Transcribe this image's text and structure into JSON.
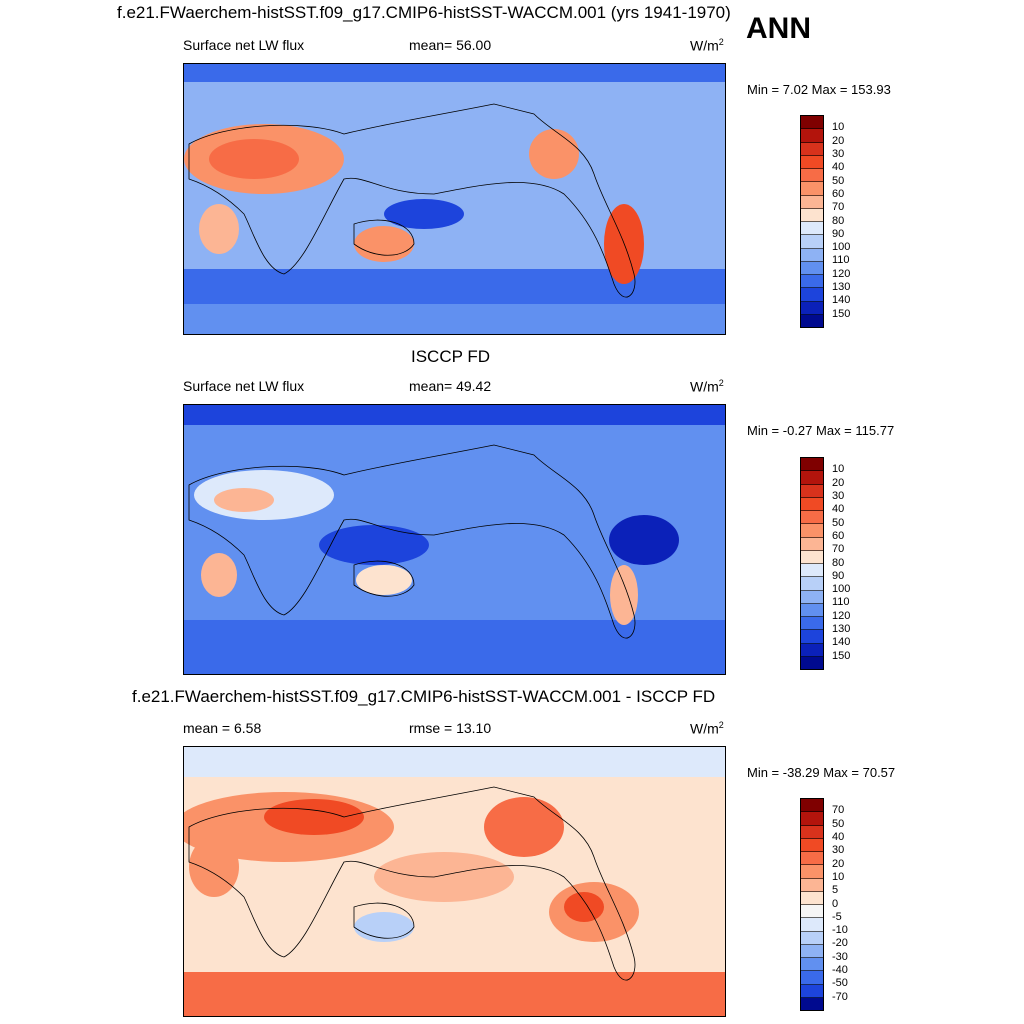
{
  "season": "ANN",
  "panels": [
    {
      "title": "f.e21.FWaerchem-histSST.f09_g17.CMIP6-histSST-WACCM.001 (yrs 1941-1970)",
      "left_label": "Surface net LW flux",
      "center_label": "mean=  56.00",
      "units": "W/m",
      "units_sup": "2",
      "minmax": "Min =   7.02 Max = 153.93"
    },
    {
      "title": "ISCCP FD",
      "left_label": "Surface net LW flux",
      "center_label": "mean=  49.42",
      "units": "W/m",
      "units_sup": "2",
      "minmax": "Min =  -0.27 Max = 115.77"
    },
    {
      "title": "f.e21.FWaerchem-histSST.f09_g17.CMIP6-histSST-WACCM.001 - ISCCP FD",
      "left_label": "mean =   6.58",
      "center_label": "rmse =  13.10",
      "units": "W/m",
      "units_sup": "2",
      "minmax": "Min = -38.29 Max =  70.57"
    }
  ],
  "chart_data": [
    {
      "type": "heatmap",
      "title": "f.e21.FWaerchem-histSST.f09_g17.CMIP6-histSST-WACCM.001 (yrs 1941-1970)",
      "variable": "Surface net LW flux",
      "units": "W/m2",
      "mean": 56.0,
      "min": 7.02,
      "max": 153.93,
      "colorbar_levels": [
        10,
        20,
        30,
        40,
        50,
        60,
        70,
        80,
        90,
        100,
        110,
        120,
        130,
        140,
        150
      ],
      "colorbar_colors": [
        "#7f0000",
        "#b3140c",
        "#d8321c",
        "#f04a24",
        "#f76c46",
        "#fa9268",
        "#fcb594",
        "#fde3cf",
        "#dde9fb",
        "#b8d0f8",
        "#8eb2f4",
        "#6190f0",
        "#3a6aea",
        "#1d44dc",
        "#0b21b9",
        "#000a8f"
      ]
    },
    {
      "type": "heatmap",
      "title": "ISCCP FD",
      "variable": "Surface net LW flux",
      "units": "W/m2",
      "mean": 49.42,
      "min": -0.27,
      "max": 115.77,
      "colorbar_levels": [
        10,
        20,
        30,
        40,
        50,
        60,
        70,
        80,
        90,
        100,
        110,
        120,
        130,
        140,
        150
      ],
      "colorbar_colors": [
        "#7f0000",
        "#b3140c",
        "#d8321c",
        "#f04a24",
        "#f76c46",
        "#fa9268",
        "#fcb594",
        "#fde3cf",
        "#dde9fb",
        "#b8d0f8",
        "#8eb2f4",
        "#6190f0",
        "#3a6aea",
        "#1d44dc",
        "#0b21b9",
        "#000a8f"
      ]
    },
    {
      "type": "heatmap",
      "title": "f.e21.FWaerchem-histSST.f09_g17.CMIP6-histSST-WACCM.001 - ISCCP FD",
      "units": "W/m2",
      "mean": 6.58,
      "rmse": 13.1,
      "min": -38.29,
      "max": 70.57,
      "colorbar_levels": [
        70,
        50,
        40,
        30,
        20,
        10,
        5,
        0,
        -5,
        -10,
        -20,
        -30,
        -40,
        -50,
        -70
      ],
      "colorbar_colors": [
        "#7f0000",
        "#b3140c",
        "#d8321c",
        "#f04a24",
        "#f76c46",
        "#fa9268",
        "#fcb594",
        "#fde3cf",
        "#f5f5f5",
        "#dde9fb",
        "#b8d0f8",
        "#8eb2f4",
        "#6190f0",
        "#3a6aea",
        "#1d44dc",
        "#000a8f"
      ]
    }
  ]
}
